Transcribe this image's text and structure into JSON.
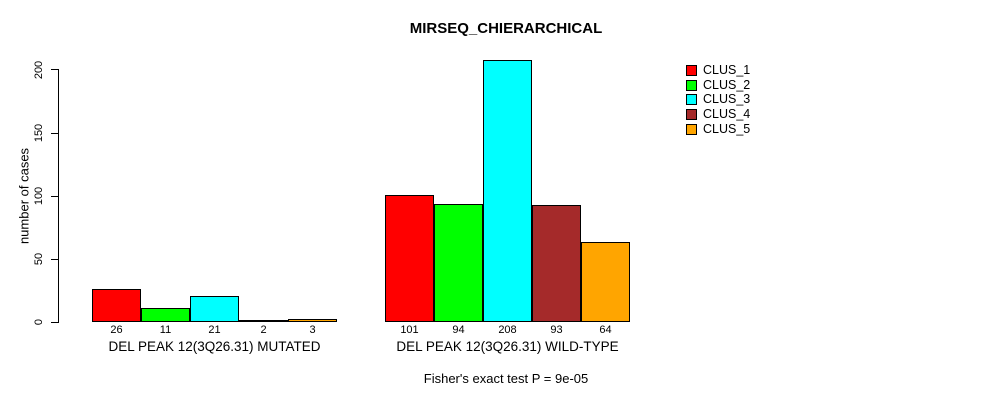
{
  "chart_data": {
    "type": "bar",
    "title": "MIRSEQ_CHIERARCHICAL",
    "ylabel": "number of cases",
    "xlabel": "",
    "ylim": [
      0,
      200
    ],
    "yticks": [
      0,
      50,
      100,
      150,
      200
    ],
    "grid": false,
    "legend_position": "top-right",
    "bar_value_labels": true,
    "categories": [
      "DEL PEAK 12(3Q26.31) MUTATED",
      "DEL PEAK 12(3Q26.31) WILD-TYPE"
    ],
    "series": [
      {
        "name": "CLUS_1",
        "color": "#FF0000",
        "values": [
          26,
          101
        ]
      },
      {
        "name": "CLUS_2",
        "color": "#00FF00",
        "values": [
          11,
          94
        ]
      },
      {
        "name": "CLUS_3",
        "color": "#00FFFF",
        "values": [
          21,
          208
        ]
      },
      {
        "name": "CLUS_4",
        "color": "#A52A2A",
        "values": [
          2,
          93
        ]
      },
      {
        "name": "CLUS_5",
        "color": "#FFA500",
        "values": [
          3,
          64
        ]
      }
    ],
    "annotation": "Fisher's exact test P = 9e-05"
  }
}
